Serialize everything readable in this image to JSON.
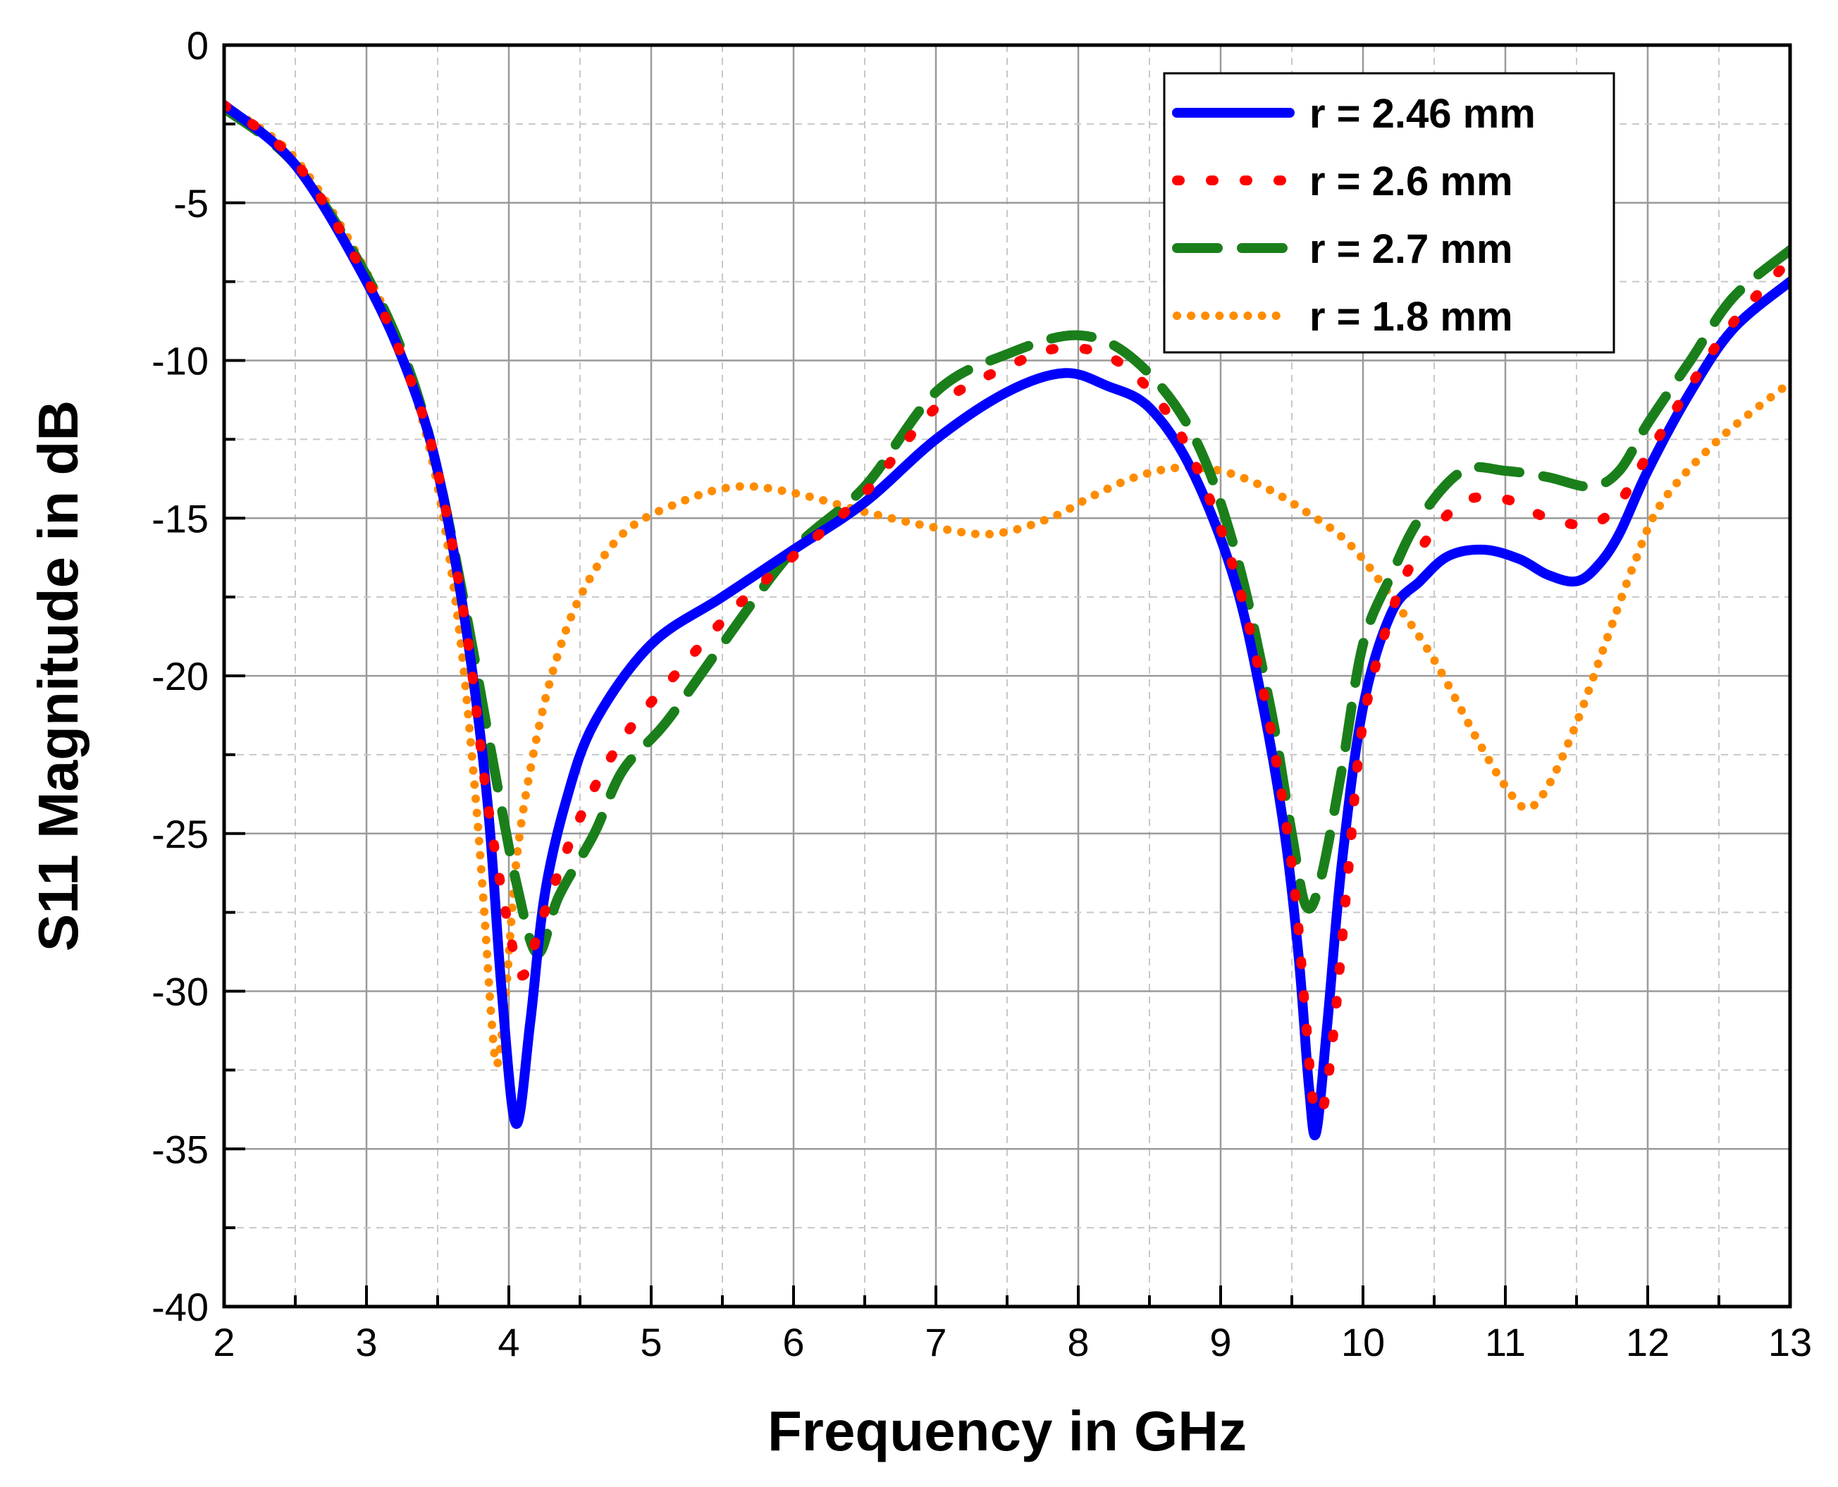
{
  "chart_data": {
    "type": "line",
    "xlabel": "Frequency in GHz",
    "ylabel": "S11 Magnitude in dB",
    "xlim": [
      2,
      13
    ],
    "ylim": [
      -40,
      0
    ],
    "xticks": [
      "2",
      "3",
      "4",
      "5",
      "6",
      "7",
      "8",
      "9",
      "10",
      "11",
      "12",
      "13"
    ],
    "yticks": [
      "0",
      "-5",
      "-10",
      "-15",
      "-20",
      "-25",
      "-30",
      "-35",
      "-40"
    ],
    "grid": true,
    "legend_position": "top-right",
    "series": [
      {
        "name": "r = 2.46 mm",
        "color": "#0000ff",
        "style": "solid",
        "points": [
          [
            2,
            -1.9
          ],
          [
            2.5,
            -3.8
          ],
          [
            3,
            -7.5
          ],
          [
            3.3,
            -10.5
          ],
          [
            3.5,
            -13.5
          ],
          [
            3.7,
            -18.5
          ],
          [
            3.85,
            -24
          ],
          [
            3.95,
            -30
          ],
          [
            4.05,
            -34.2
          ],
          [
            4.15,
            -31
          ],
          [
            4.25,
            -27
          ],
          [
            4.4,
            -24
          ],
          [
            4.6,
            -21.5
          ],
          [
            5,
            -19
          ],
          [
            5.5,
            -17.5
          ],
          [
            6,
            -16
          ],
          [
            6.5,
            -14.5
          ],
          [
            7,
            -12.5
          ],
          [
            7.5,
            -11
          ],
          [
            7.9,
            -10.4
          ],
          [
            8.2,
            -10.8
          ],
          [
            8.5,
            -11.5
          ],
          [
            8.8,
            -13.5
          ],
          [
            9.1,
            -17
          ],
          [
            9.3,
            -21
          ],
          [
            9.45,
            -25
          ],
          [
            9.55,
            -29
          ],
          [
            9.62,
            -33
          ],
          [
            9.67,
            -34.5
          ],
          [
            9.75,
            -31
          ],
          [
            9.85,
            -26
          ],
          [
            10,
            -21
          ],
          [
            10.2,
            -18
          ],
          [
            10.4,
            -17
          ],
          [
            10.6,
            -16.2
          ],
          [
            10.85,
            -16
          ],
          [
            11.1,
            -16.3
          ],
          [
            11.3,
            -16.8
          ],
          [
            11.5,
            -17
          ],
          [
            11.65,
            -16.5
          ],
          [
            11.8,
            -15.5
          ],
          [
            12,
            -13.5
          ],
          [
            12.3,
            -11
          ],
          [
            12.6,
            -9
          ],
          [
            13,
            -7.5
          ]
        ]
      },
      {
        "name": "r = 2.6 mm",
        "color": "#ff0000",
        "style": "dashed",
        "points": [
          [
            2,
            -1.9
          ],
          [
            2.5,
            -3.7
          ],
          [
            3,
            -7.4
          ],
          [
            3.3,
            -10.5
          ],
          [
            3.5,
            -13.5
          ],
          [
            3.7,
            -18.5
          ],
          [
            3.85,
            -24
          ],
          [
            4,
            -28
          ],
          [
            4.1,
            -29.5
          ],
          [
            4.25,
            -27.5
          ],
          [
            4.5,
            -24.5
          ],
          [
            4.8,
            -22
          ],
          [
            5.2,
            -19.8
          ],
          [
            5.6,
            -17.8
          ],
          [
            6,
            -16.2
          ],
          [
            6.5,
            -14.2
          ],
          [
            7,
            -11.5
          ],
          [
            7.5,
            -10.2
          ],
          [
            7.9,
            -9.6
          ],
          [
            8.3,
            -10.1
          ],
          [
            8.7,
            -12.2
          ],
          [
            9.05,
            -16
          ],
          [
            9.3,
            -20.5
          ],
          [
            9.5,
            -26
          ],
          [
            9.6,
            -31
          ],
          [
            9.65,
            -33.5
          ],
          [
            9.72,
            -33.7
          ],
          [
            9.8,
            -31
          ],
          [
            9.9,
            -26
          ],
          [
            10,
            -21.5
          ],
          [
            10.2,
            -18
          ],
          [
            10.4,
            -16
          ],
          [
            10.7,
            -14.5
          ],
          [
            11,
            -14.4
          ],
          [
            11.3,
            -15
          ],
          [
            11.6,
            -15.2
          ],
          [
            11.8,
            -14.5
          ],
          [
            12,
            -13
          ],
          [
            12.3,
            -10.8
          ],
          [
            12.6,
            -8.8
          ],
          [
            13,
            -6.8
          ]
        ]
      },
      {
        "name": "r = 2.7 mm",
        "color": "#1a7f1a",
        "style": "long-dash",
        "points": [
          [
            2,
            -2
          ],
          [
            2.5,
            -3.8
          ],
          [
            3,
            -7.3
          ],
          [
            3.3,
            -10.3
          ],
          [
            3.5,
            -13.5
          ],
          [
            3.7,
            -18
          ],
          [
            3.9,
            -23
          ],
          [
            4.05,
            -26.5
          ],
          [
            4.2,
            -28.8
          ],
          [
            4.35,
            -27
          ],
          [
            4.6,
            -25
          ],
          [
            4.8,
            -23
          ],
          [
            5.1,
            -21.5
          ],
          [
            5.5,
            -19
          ],
          [
            6,
            -16
          ],
          [
            6.5,
            -14
          ],
          [
            7,
            -11
          ],
          [
            7.5,
            -9.8
          ],
          [
            8,
            -9.2
          ],
          [
            8.4,
            -10
          ],
          [
            8.8,
            -12.3
          ],
          [
            9.1,
            -16
          ],
          [
            9.35,
            -21
          ],
          [
            9.5,
            -25
          ],
          [
            9.6,
            -27.3
          ],
          [
            9.7,
            -26.5
          ],
          [
            9.85,
            -23
          ],
          [
            10,
            -19
          ],
          [
            10.2,
            -16.8
          ],
          [
            10.4,
            -15
          ],
          [
            10.7,
            -13.5
          ],
          [
            11,
            -13.5
          ],
          [
            11.3,
            -13.7
          ],
          [
            11.6,
            -14
          ],
          [
            11.8,
            -13.5
          ],
          [
            12,
            -12
          ],
          [
            12.3,
            -10
          ],
          [
            12.6,
            -8
          ],
          [
            13,
            -6.5
          ]
        ]
      },
      {
        "name": "r = 1.8 mm",
        "color": "#ff8c00",
        "style": "dotted",
        "points": [
          [
            2,
            -1.9
          ],
          [
            2.5,
            -3.6
          ],
          [
            3,
            -7.2
          ],
          [
            3.3,
            -10.5
          ],
          [
            3.5,
            -14
          ],
          [
            3.65,
            -18.5
          ],
          [
            3.75,
            -23
          ],
          [
            3.82,
            -27
          ],
          [
            3.88,
            -31
          ],
          [
            3.92,
            -32.3
          ],
          [
            3.98,
            -30
          ],
          [
            4.05,
            -26
          ],
          [
            4.15,
            -23
          ],
          [
            4.3,
            -20
          ],
          [
            4.5,
            -17.5
          ],
          [
            4.8,
            -15.5
          ],
          [
            5.2,
            -14.5
          ],
          [
            5.6,
            -14
          ],
          [
            6,
            -14.2
          ],
          [
            6.5,
            -14.8
          ],
          [
            7,
            -15.3
          ],
          [
            7.4,
            -15.5
          ],
          [
            7.8,
            -15
          ],
          [
            8.1,
            -14.3
          ],
          [
            8.4,
            -13.7
          ],
          [
            8.7,
            -13.4
          ],
          [
            9,
            -13.5
          ],
          [
            9.3,
            -14
          ],
          [
            9.6,
            -14.8
          ],
          [
            9.9,
            -15.8
          ],
          [
            10.2,
            -17.5
          ],
          [
            10.5,
            -19.5
          ],
          [
            10.8,
            -22
          ],
          [
            11,
            -23.5
          ],
          [
            11.15,
            -24.2
          ],
          [
            11.3,
            -23.5
          ],
          [
            11.5,
            -21.5
          ],
          [
            11.7,
            -19
          ],
          [
            11.9,
            -16.5
          ],
          [
            12.1,
            -14.5
          ],
          [
            12.5,
            -12.5
          ],
          [
            13,
            -10.7
          ]
        ]
      }
    ]
  }
}
